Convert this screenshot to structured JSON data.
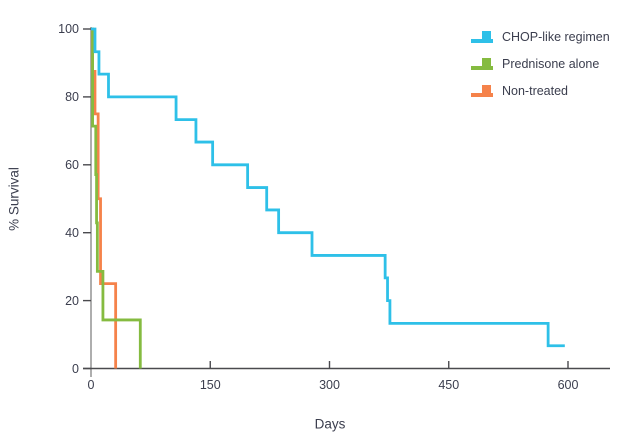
{
  "colors": {
    "background": "#ffffff",
    "text": "#3b3e4e",
    "x_axis_line": "#4a4a4e",
    "y_axis_line": "#8c8c8c",
    "tick_mark": "#4a4a4e"
  },
  "chart_data": {
    "type": "line",
    "subtype": "kaplan-meier-step",
    "title": "",
    "xlabel": "Days",
    "ylabel": "% Survival",
    "xlim": [
      0,
      652
    ],
    "ylim": [
      0,
      100
    ],
    "xticks": [
      0,
      150,
      300,
      450,
      600
    ],
    "yticks": [
      0,
      20,
      40,
      60,
      80,
      100
    ],
    "grid": false,
    "legend_position": "top-right",
    "series": [
      {
        "name": "CHOP-like regimen",
        "color": "#2ec0e8",
        "points": [
          [
            0,
            100
          ],
          [
            5,
            93.3
          ],
          [
            10,
            86.7
          ],
          [
            22,
            80
          ],
          [
            107,
            73.3
          ],
          [
            132,
            66.7
          ],
          [
            153,
            60
          ],
          [
            197,
            53.3
          ],
          [
            221,
            46.7
          ],
          [
            236,
            40
          ],
          [
            278,
            33.3
          ],
          [
            370,
            26.7
          ],
          [
            373,
            20
          ],
          [
            376,
            13.3
          ],
          [
            575,
            6.7
          ]
        ],
        "end_day": 596
      },
      {
        "name": "Prednisone alone",
        "color": "#85bb40",
        "points": [
          [
            0,
            100
          ],
          [
            2,
            71.4
          ],
          [
            6,
            57.1
          ],
          [
            7,
            42.9
          ],
          [
            8,
            28.6
          ],
          [
            15,
            14.3
          ],
          [
            62,
            0
          ]
        ],
        "end_day": 62
      },
      {
        "name": "Non-treated",
        "color": "#f5824a",
        "points": [
          [
            0,
            100
          ],
          [
            2,
            87.5
          ],
          [
            5,
            75
          ],
          [
            9,
            50
          ],
          [
            12,
            25
          ],
          [
            31,
            0
          ]
        ],
        "end_day": 31
      }
    ]
  }
}
